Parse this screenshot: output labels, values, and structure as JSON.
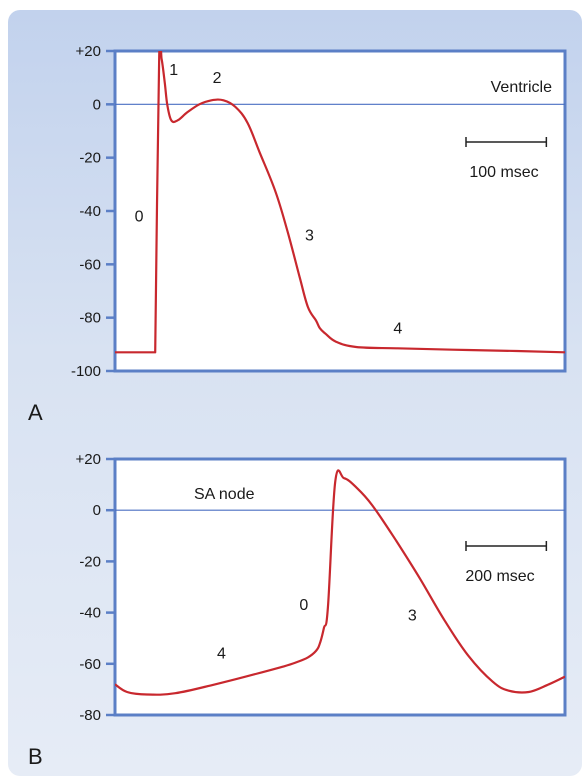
{
  "chart_data": [
    {
      "type": "line",
      "panel_label": "A",
      "plot_label": "Ventricle",
      "ylim": [
        -100,
        20
      ],
      "yticks": [
        20,
        0,
        -20,
        -40,
        -60,
        -80,
        -100
      ],
      "ytick_labels": [
        "+20",
        "0",
        "-20",
        "-40",
        "-60",
        "-80",
        "-100"
      ],
      "reference_line_y": 0,
      "grid": false,
      "scale_bar": {
        "label": "100 msec",
        "duration_ms": 100
      },
      "time_range_ms": [
        0,
        560
      ],
      "series": [
        {
          "color": "#c8282e",
          "x": [
            0,
            50,
            50,
            55,
            58,
            62,
            65,
            70,
            78,
            90,
            105,
            120,
            135,
            150,
            165,
            180,
            200,
            215,
            230,
            240,
            250,
            255,
            262,
            275,
            300,
            350,
            420,
            500,
            560
          ],
          "y": [
            -93,
            -93,
            -93,
            18,
            17,
            8,
            0,
            -6,
            -6,
            -3,
            0,
            1.5,
            1.5,
            -1,
            -7,
            -18,
            -33,
            -48,
            -65,
            -76,
            -81,
            -84,
            -86,
            -89,
            -91,
            -91.5,
            -92,
            -92.5,
            -93
          ]
        }
      ],
      "annotations": [
        {
          "text": "0",
          "x": 30,
          "y": -44
        },
        {
          "text": "1",
          "x": 73,
          "y": 11
        },
        {
          "text": "2",
          "x": 127,
          "y": 8
        },
        {
          "text": "3",
          "x": 242,
          "y": -51
        },
        {
          "text": "4",
          "x": 352,
          "y": -86
        }
      ]
    },
    {
      "type": "line",
      "panel_label": "B",
      "plot_label": "SA node",
      "ylim": [
        -80,
        20
      ],
      "yticks": [
        20,
        0,
        -20,
        -40,
        -60,
        -80
      ],
      "ytick_labels": [
        "+20",
        "0",
        "-20",
        "-40",
        "-60",
        "-80"
      ],
      "reference_line_y": 0,
      "grid": false,
      "scale_bar": {
        "label": "200 msec",
        "duration_ms": 200
      },
      "time_range_ms": [
        0,
        1120
      ],
      "series": [
        {
          "color": "#c8282e",
          "x": [
            0,
            30,
            80,
            150,
            250,
            350,
            420,
            450,
            480,
            500,
            510,
            520,
            530,
            548,
            570,
            600,
            640,
            700,
            760,
            820,
            880,
            940,
            980,
            1030,
            1080,
            1120
          ],
          "y": [
            -68,
            -71,
            -72,
            -71.5,
            -68,
            -64,
            -61,
            -59.5,
            -57.5,
            -55,
            -52,
            -46,
            -38,
            11,
            12.5,
            9,
            2,
            -12,
            -27,
            -43,
            -57,
            -67,
            -70.5,
            -71,
            -68,
            -65
          ]
        }
      ],
      "annotations": [
        {
          "text": "0",
          "x": 470,
          "y": -39
        },
        {
          "text": "3",
          "x": 740,
          "y": -43
        },
        {
          "text": "4",
          "x": 265,
          "y": -58
        }
      ]
    }
  ]
}
